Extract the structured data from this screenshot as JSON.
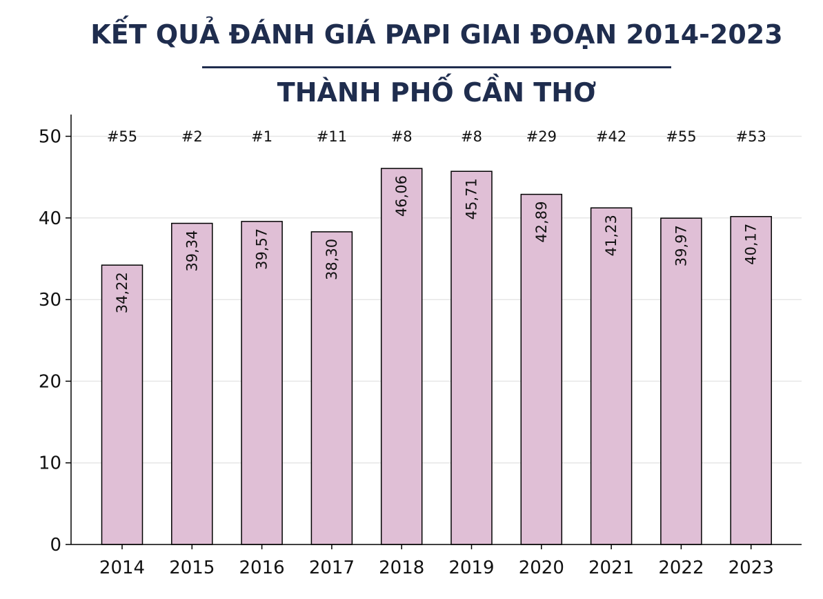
{
  "title": {
    "line1": "KẾT QUẢ ĐÁNH GIÁ PAPI GIAI ĐOẠN 2014-2023",
    "line2": "THÀNH PHỐ CẦN THƠ"
  },
  "colors": {
    "title": "#1f2d4e",
    "bar_fill": "#e0bfd6",
    "bar_stroke": "#000000",
    "grid": "#e6e6e6",
    "axis": "#000000"
  },
  "chart_data": {
    "type": "bar",
    "categories": [
      "2014",
      "2015",
      "2016",
      "2017",
      "2018",
      "2019",
      "2020",
      "2021",
      "2022",
      "2023"
    ],
    "values": [
      34.22,
      39.34,
      39.57,
      38.3,
      46.06,
      45.71,
      42.89,
      41.23,
      39.97,
      40.17
    ],
    "value_labels": [
      "34,22",
      "39,34",
      "39,57",
      "38,30",
      "46,06",
      "45,71",
      "42,89",
      "41,23",
      "39,97",
      "40,17"
    ],
    "rank_labels": [
      "#55",
      "#2",
      "#1",
      "#11",
      "#8",
      "#8",
      "#29",
      "#42",
      "#55",
      "#53"
    ],
    "ylim": [
      0,
      52
    ],
    "yticks": [
      0,
      10,
      20,
      30,
      40,
      50
    ],
    "xlabel": "",
    "ylabel": "",
    "grid": true,
    "legend": "none"
  }
}
